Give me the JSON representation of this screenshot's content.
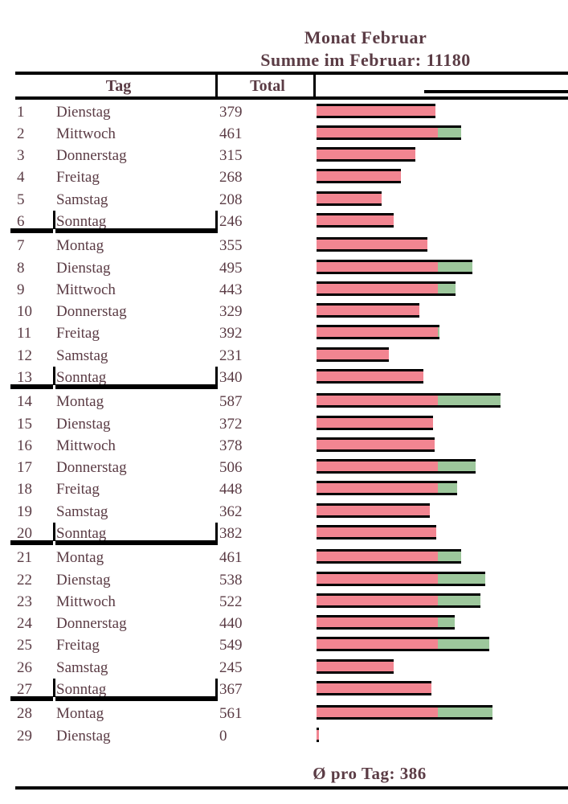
{
  "title": {
    "line1": "Monat Februar",
    "line2": "Summe im Februar: 11180"
  },
  "header": {
    "tag": "Tag",
    "total": "Total"
  },
  "footer": {
    "average_label": "Ø pro Tag: 386"
  },
  "stats": {
    "sum": 11180,
    "average": 386
  },
  "colors": {
    "text": "#5b3c45",
    "bar_below_average": "#f28591",
    "bar_above_average": "#9dc79c",
    "rule": "#000000"
  },
  "rows": [
    {
      "day": "1",
      "weekday": "Dienstag",
      "total": "379"
    },
    {
      "day": "2",
      "weekday": "Mittwoch",
      "total": "461"
    },
    {
      "day": "3",
      "weekday": "Donnerstag",
      "total": "315"
    },
    {
      "day": "4",
      "weekday": "Freitag",
      "total": "268"
    },
    {
      "day": "5",
      "weekday": "Samstag",
      "total": "208"
    },
    {
      "day": "6",
      "weekday": "Sonntag",
      "total": "246"
    },
    {
      "day": "7",
      "weekday": "Montag",
      "total": "355"
    },
    {
      "day": "8",
      "weekday": "Dienstag",
      "total": "495"
    },
    {
      "day": "9",
      "weekday": "Mittwoch",
      "total": "443"
    },
    {
      "day": "10",
      "weekday": "Donnerstag",
      "total": "329"
    },
    {
      "day": "11",
      "weekday": "Freitag",
      "total": "392"
    },
    {
      "day": "12",
      "weekday": "Samstag",
      "total": "231"
    },
    {
      "day": "13",
      "weekday": "Sonntag",
      "total": "340"
    },
    {
      "day": "14",
      "weekday": "Montag",
      "total": "587"
    },
    {
      "day": "15",
      "weekday": "Dienstag",
      "total": "372"
    },
    {
      "day": "16",
      "weekday": "Mittwoch",
      "total": "378"
    },
    {
      "day": "17",
      "weekday": "Donnerstag",
      "total": "506"
    },
    {
      "day": "18",
      "weekday": "Freitag",
      "total": "448"
    },
    {
      "day": "19",
      "weekday": "Samstag",
      "total": "362"
    },
    {
      "day": "20",
      "weekday": "Sonntag",
      "total": "382"
    },
    {
      "day": "21",
      "weekday": "Montag",
      "total": "461"
    },
    {
      "day": "22",
      "weekday": "Dienstag",
      "total": "538"
    },
    {
      "day": "23",
      "weekday": "Mittwoch",
      "total": "522"
    },
    {
      "day": "24",
      "weekday": "Donnerstag",
      "total": "440"
    },
    {
      "day": "25",
      "weekday": "Freitag",
      "total": "549"
    },
    {
      "day": "26",
      "weekday": "Samstag",
      "total": "245"
    },
    {
      "day": "27",
      "weekday": "Sonntag",
      "total": "367"
    },
    {
      "day": "28",
      "weekday": "Montag",
      "total": "561"
    },
    {
      "day": "29",
      "weekday": "Dienstag",
      "total": "0"
    }
  ],
  "chart_data": {
    "type": "bar",
    "orientation": "horizontal",
    "title": "Monat Februar",
    "subtitle": "Summe im Februar: 11180",
    "categories": [
      "1 Dienstag",
      "2 Mittwoch",
      "3 Donnerstag",
      "4 Freitag",
      "5 Samstag",
      "6 Sonntag",
      "7 Montag",
      "8 Dienstag",
      "9 Mittwoch",
      "10 Donnerstag",
      "11 Freitag",
      "12 Samstag",
      "13 Sonntag",
      "14 Montag",
      "15 Dienstag",
      "16 Mittwoch",
      "17 Donnerstag",
      "18 Freitag",
      "19 Samstag",
      "20 Sonntag",
      "21 Montag",
      "22 Dienstag",
      "23 Mittwoch",
      "24 Donnerstag",
      "25 Freitag",
      "26 Samstag",
      "27 Sonntag",
      "28 Montag",
      "29 Dienstag"
    ],
    "values": [
      379,
      461,
      315,
      268,
      208,
      246,
      355,
      495,
      443,
      329,
      392,
      231,
      340,
      587,
      372,
      378,
      506,
      448,
      362,
      382,
      461,
      538,
      522,
      440,
      549,
      245,
      367,
      561,
      0
    ],
    "sum": 11180,
    "average": 386,
    "average_label": "Ø pro Tag: 386",
    "segment_colors": {
      "up_to_average": "#f28591",
      "above_average": "#9dc79c"
    },
    "bars_note": "Each bar: pink segment up to the monthly average (386), green segment for the amount above the average; black top/bottom bar borders; Sonntag rows separated by thick black rules.",
    "xlabel": "",
    "ylabel": "",
    "grid": false,
    "legend": false
  }
}
